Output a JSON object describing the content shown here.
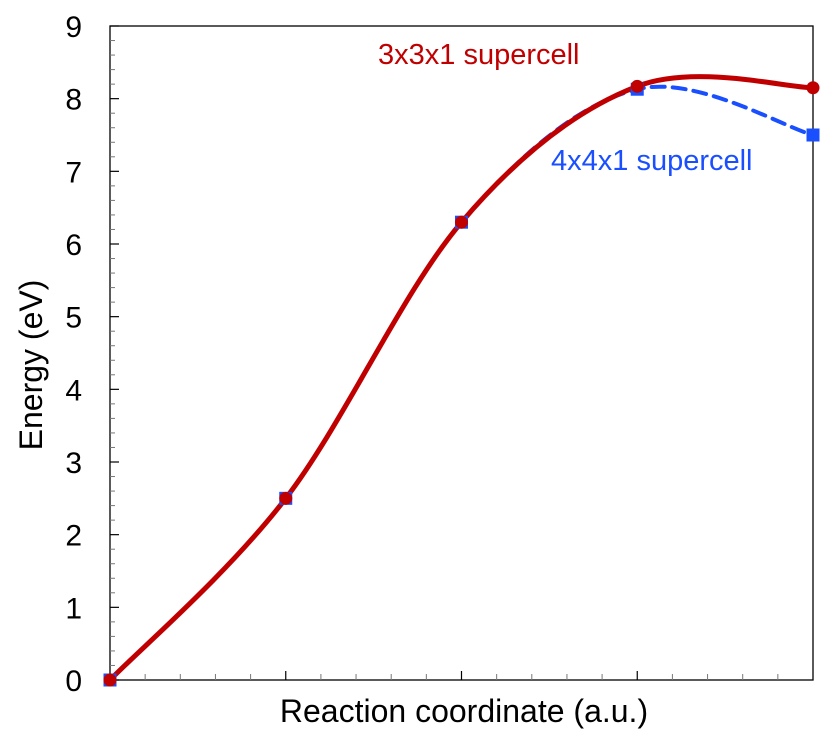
{
  "chart_data": {
    "type": "line",
    "title": "",
    "xlabel": "Reaction coordinate (a.u.)",
    "ylabel": "Energy (eV)",
    "xlim": [
      0,
      4
    ],
    "ylim": [
      0,
      9
    ],
    "y_ticks": [
      "0",
      "1",
      "2",
      "3",
      "4",
      "5",
      "6",
      "7",
      "8",
      "9"
    ],
    "x_tick_labels": [],
    "grid": false,
    "legend": "none",
    "series": [
      {
        "name": "3x3x1 supercell",
        "color": "#c00000",
        "marker": "circle",
        "line_style": "solid",
        "x": [
          0,
          1,
          2,
          3,
          4
        ],
        "y": [
          0,
          2.5,
          6.3,
          8.17,
          8.15
        ]
      },
      {
        "name": "4x4x1 supercell",
        "color": "#1a4fff",
        "marker": "square",
        "line_style": "dashed",
        "x": [
          0,
          1,
          2,
          3,
          4
        ],
        "y": [
          0,
          2.5,
          6.3,
          8.13,
          7.5
        ]
      }
    ]
  }
}
